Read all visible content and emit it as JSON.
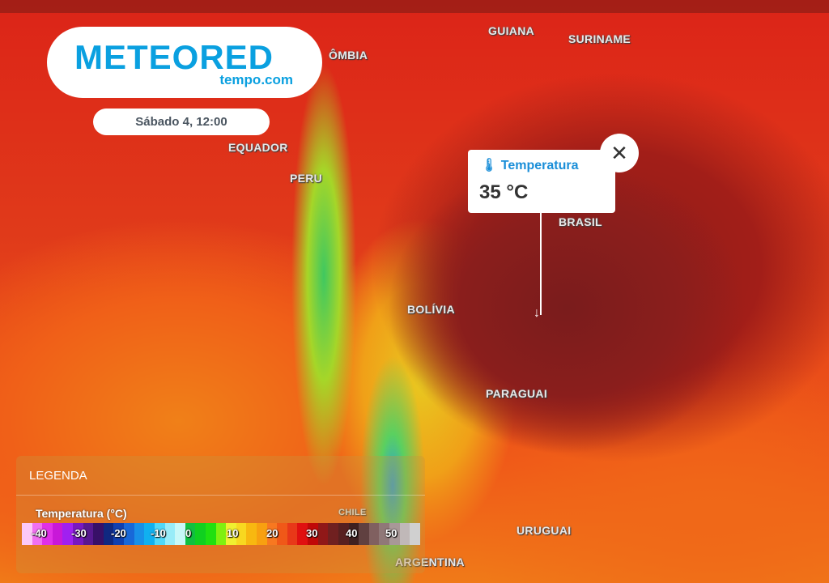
{
  "logo": {
    "name": "METEORED",
    "sub": "tempo.com"
  },
  "date": "Sábado 4, 12:00",
  "countries": [
    "ÔMBIA",
    "EQUADOR",
    "PERU",
    "GUIANA",
    "SURINAME",
    "BRASIL",
    "BOLÍVIA",
    "PARAGUAI",
    "CHILE",
    "URUGUAI",
    "ARGENTINA"
  ],
  "popup": {
    "icon": "thermometer-icon",
    "title": "Temperatura",
    "value": "35 °C",
    "close_icon": "close-icon"
  },
  "legend": {
    "header": "LEGENDA",
    "title": "Temperatura (°C)",
    "ticks": [
      "-40",
      "-30",
      "-20",
      "-10",
      "0",
      "10",
      "20",
      "30",
      "40",
      "50"
    ],
    "colors": [
      "#fcc8f8",
      "#f070f0",
      "#e030e8",
      "#c818d8",
      "#a020f0",
      "#7818c0",
      "#581890",
      "#381068",
      "#102880",
      "#1040b0",
      "#1868d8",
      "#1890e8",
      "#10b0f0",
      "#50d8f8",
      "#98ecf8",
      "#c8f8f8",
      "#10c040",
      "#10d020",
      "#20e010",
      "#80f010",
      "#f0f030",
      "#f8d820",
      "#f8b810",
      "#f8a010",
      "#f87820",
      "#f05818",
      "#e83818",
      "#e01010",
      "#c00808",
      "#901818",
      "#702020",
      "#582020",
      "#402020",
      "#604040",
      "#806060",
      "#907878",
      "#a89898",
      "#c0b8b8",
      "#d0d0d0"
    ]
  }
}
